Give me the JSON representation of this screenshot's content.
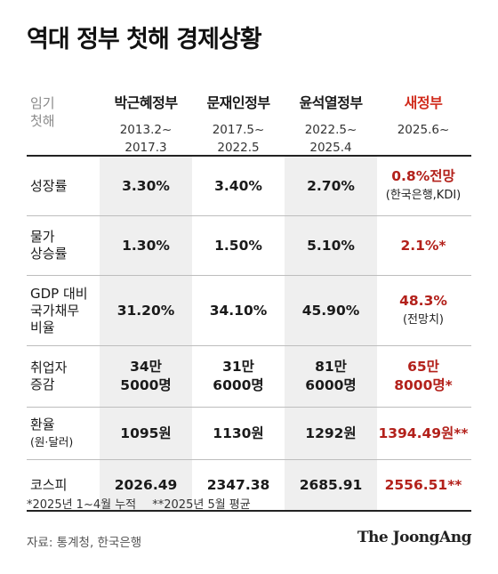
{
  "title": "역대 정부 첫해 경제상황",
  "header": {
    "row_label_lines": [
      "임기",
      "첫해"
    ],
    "columns": [
      {
        "name": "박근혜정부",
        "term_lines": [
          "2013.2~",
          "2017.3"
        ]
      },
      {
        "name": "문재인정부",
        "term_lines": [
          "2017.5~",
          "2022.5"
        ]
      },
      {
        "name": "윤석열정부",
        "term_lines": [
          "2022.5~",
          "2025.4"
        ]
      },
      {
        "name": "새정부",
        "term_lines": [
          "2025.6~"
        ]
      }
    ]
  },
  "chart_data": {
    "type": "table",
    "title": "역대 정부 첫해 경제상황",
    "columns": [
      "박근혜정부",
      "문재인정부",
      "윤석열정부",
      "새정부"
    ],
    "rows": [
      {
        "label_lines": [
          "성장률"
        ],
        "cells": [
          [
            "3.30%"
          ],
          [
            "3.40%"
          ],
          [
            "2.70%"
          ],
          [
            "0.8%전망",
            "(한국은행,KDI)"
          ]
        ]
      },
      {
        "label_lines": [
          "물가",
          "상승률"
        ],
        "cells": [
          [
            "1.30%"
          ],
          [
            "1.50%"
          ],
          [
            "5.10%"
          ],
          [
            "2.1%*"
          ]
        ]
      },
      {
        "label_lines": [
          "GDP 대비",
          "국가채무",
          "비율"
        ],
        "cells": [
          [
            "31.20%"
          ],
          [
            "34.10%"
          ],
          [
            "45.90%"
          ],
          [
            "48.3%",
            "(전망치)"
          ]
        ]
      },
      {
        "label_lines": [
          "취업자",
          "증감"
        ],
        "cells": [
          [
            "34만",
            "5000명"
          ],
          [
            "31만",
            "6000명"
          ],
          [
            "81만",
            "6000명"
          ],
          [
            "65만",
            "8000명*"
          ]
        ]
      },
      {
        "label_lines": [
          "환율",
          "(원·달러)"
        ],
        "cells": [
          [
            "1095원"
          ],
          [
            "1130원"
          ],
          [
            "1292원"
          ],
          [
            "1394.49원**"
          ]
        ]
      },
      {
        "label_lines": [
          "코스피"
        ],
        "cells": [
          [
            "2026.49"
          ],
          [
            "2347.38"
          ],
          [
            "2685.91"
          ],
          [
            "2556.51**"
          ]
        ]
      }
    ]
  },
  "footnotes": [
    "*2025년 1~4월 누적",
    "**2025년 5월 평균"
  ],
  "source": "자료: 통계청, 한국은행",
  "logo": "The JoongAng",
  "colors": {
    "accent": "#d12b1c",
    "accent_value": "#b3211b",
    "shade": "#efefef"
  }
}
